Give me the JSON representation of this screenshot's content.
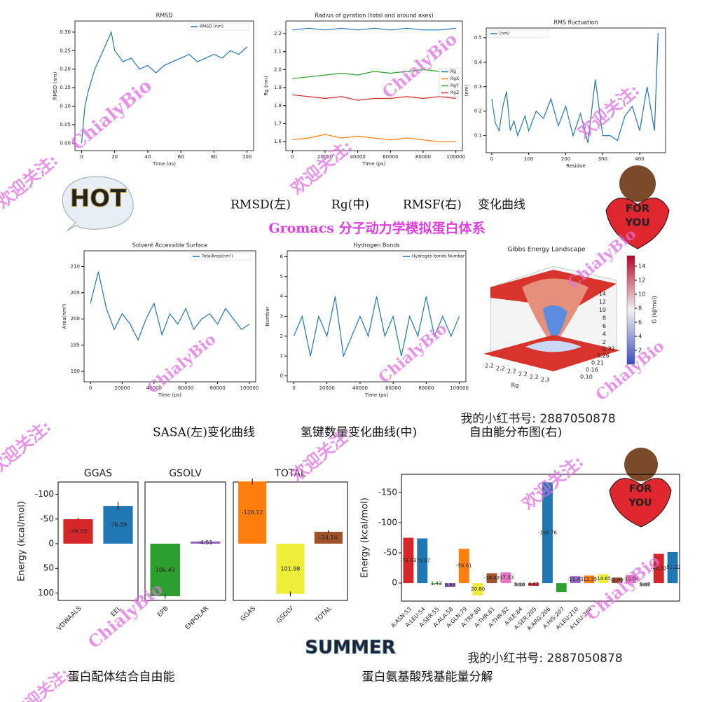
{
  "captions": {
    "rmsd": "RMSD(左)",
    "rg": "Rg(中)",
    "rmsf": "RMSF(右)",
    "curve": "变化曲线",
    "headline": "Gromacs 分子动力学模拟蛋白体系",
    "sasa": "SASA(左)变化曲线",
    "hbond": "氢键数量变化曲线(中)",
    "gibbs": "自由能分布图(右)",
    "binding": "蛋白配体结合自由能",
    "residue": "蛋白氨基酸残基能量分解"
  },
  "account": "我的小红书号: 2887050878",
  "stickers": [
    "HOT",
    "FOR",
    "YOU",
    "SUMMER"
  ],
  "watermarks": [
    "ChialyBio",
    "欢迎关注:"
  ],
  "chart_data": [
    {
      "type": "line",
      "title": "RMSD",
      "xlabel": "Time (ns)",
      "ylabel": "RMSD (nm)",
      "legend": "upper right",
      "x": [
        0,
        2,
        4,
        6,
        8,
        10,
        12,
        14,
        16,
        18,
        20,
        25,
        30,
        35,
        40,
        45,
        50,
        55,
        60,
        65,
        70,
        75,
        80,
        85,
        90,
        95,
        100
      ],
      "series": [
        {
          "name": "RMSD (nm)",
          "color": "#1f77b4",
          "values": [
            0,
            0.1,
            0.14,
            0.17,
            0.2,
            0.22,
            0.24,
            0.26,
            0.28,
            0.3,
            0.25,
            0.22,
            0.23,
            0.2,
            0.21,
            0.19,
            0.21,
            0.22,
            0.23,
            0.24,
            0.22,
            0.23,
            0.24,
            0.23,
            0.25,
            0.24,
            0.26
          ]
        }
      ],
      "xlim": [
        -4,
        104
      ],
      "xticks": [
        0,
        20,
        40,
        60,
        80,
        100
      ],
      "ylim": [
        -0.02,
        0.33
      ],
      "yticks": [
        {
          "value": 0,
          "label": "0.00"
        },
        0.05,
        {
          "value": 0.1,
          "label": "0.10"
        },
        0.15,
        {
          "value": 0.2,
          "label": "0.20"
        },
        0.25,
        {
          "value": 0.3,
          "label": "0.30"
        }
      ]
    },
    {
      "type": "line",
      "title": "Radius of gyration (total and around axes)",
      "xlabel": "Time (ps)",
      "ylabel": "Rg (nm)",
      "legend": "right",
      "x": [
        0,
        10000,
        20000,
        30000,
        40000,
        50000,
        60000,
        70000,
        80000,
        90000,
        100000
      ],
      "series": [
        {
          "name": "Rg",
          "color": "#1f77b4",
          "values": [
            2.22,
            2.23,
            2.22,
            2.23,
            2.22,
            2.23,
            2.22,
            2.23,
            2.22,
            2.22,
            2.23
          ]
        },
        {
          "name": "RgX",
          "color": "#ff7f0e",
          "values": [
            1.61,
            1.62,
            1.64,
            1.62,
            1.63,
            1.62,
            1.61,
            1.62,
            1.61,
            1.6,
            1.6
          ]
        },
        {
          "name": "RgY",
          "color": "#2ca02c",
          "values": [
            1.95,
            1.96,
            1.97,
            1.98,
            1.97,
            1.99,
            1.98,
            1.99,
            2.0,
            1.99,
            2.0
          ]
        },
        {
          "name": "RgZ",
          "color": "#d62728",
          "values": [
            1.86,
            1.85,
            1.84,
            1.85,
            1.83,
            1.84,
            1.84,
            1.85,
            1.84,
            1.85,
            1.84
          ]
        }
      ],
      "xlim": [
        -4000,
        104000
      ],
      "xticks": [
        0,
        20000,
        40000,
        60000,
        80000,
        100000
      ],
      "ylim": [
        1.55,
        2.27
      ],
      "yticks": [
        1.6,
        1.7,
        1.8,
        1.9,
        {
          "value": 2,
          "label": "2.0"
        },
        2.1,
        2.2
      ]
    },
    {
      "type": "line",
      "title": "RMS fluctuation",
      "xlabel": "Residue",
      "ylabel": "(nm)",
      "legend": "upper left",
      "x": [
        0,
        10,
        20,
        30,
        40,
        50,
        60,
        70,
        80,
        90,
        100,
        120,
        140,
        160,
        180,
        200,
        220,
        240,
        260,
        280,
        300,
        320,
        340,
        360,
        380,
        400,
        420,
        440,
        450
      ],
      "series": [
        {
          "name": "(nm)",
          "color": "#1f77b4",
          "values": [
            0.25,
            0.15,
            0.12,
            0.22,
            0.28,
            0.12,
            0.16,
            0.1,
            0.14,
            0.18,
            0.12,
            0.2,
            0.17,
            0.25,
            0.14,
            0.22,
            0.1,
            0.19,
            0.07,
            0.33,
            0.1,
            0.1,
            0.08,
            0.18,
            0.22,
            0.12,
            0.3,
            0.12,
            0.52
          ]
        }
      ],
      "xlim": [
        -15,
        470
      ],
      "xticks": [
        0,
        100,
        200,
        300,
        400
      ],
      "ylim": [
        0.03,
        0.54
      ],
      "yticks": [
        0.1,
        0.2,
        0.3,
        0.4,
        0.5
      ]
    },
    {
      "type": "line",
      "title": "Solvent Accessible Surface",
      "xlabel": "Time (ps)",
      "ylabel": "Area(nm²)",
      "legend": "upper right",
      "x": [
        0,
        5000,
        10000,
        15000,
        20000,
        25000,
        30000,
        35000,
        40000,
        45000,
        50000,
        55000,
        60000,
        65000,
        70000,
        75000,
        80000,
        85000,
        90000,
        95000,
        100000
      ],
      "series": [
        {
          "name": "TotalArea(nm²)",
          "color": "#1f77b4",
          "values": [
            203,
            209,
            202,
            198,
            201,
            199,
            196,
            200,
            203,
            197,
            201,
            199,
            202,
            198,
            200,
            201,
            199,
            202,
            200,
            198,
            199
          ]
        }
      ],
      "xlim": [
        -4000,
        104000
      ],
      "xticks": [
        0,
        20000,
        40000,
        60000,
        80000,
        100000
      ],
      "ylim": [
        188,
        213
      ],
      "yticks": [
        190,
        195,
        200,
        205,
        210
      ]
    },
    {
      "type": "line",
      "title": "Hydrogen Bonds",
      "xlabel": "Time (ps)",
      "ylabel": "Number",
      "legend": "upper right",
      "x": [
        0,
        5000,
        10000,
        15000,
        20000,
        25000,
        30000,
        35000,
        40000,
        45000,
        50000,
        55000,
        60000,
        65000,
        70000,
        75000,
        80000,
        85000,
        90000,
        95000,
        100000
      ],
      "series": [
        {
          "name": "Hydrogen bonds Number",
          "color": "#1f77b4",
          "values": [
            2,
            3,
            1,
            3,
            2,
            4,
            1,
            2,
            3,
            2,
            4,
            2,
            3,
            1,
            3,
            2,
            4,
            2,
            3,
            2,
            3
          ]
        }
      ],
      "xlim": [
        -4000,
        104000
      ],
      "xticks": [
        0,
        20000,
        40000,
        60000,
        80000,
        100000
      ],
      "ylim": [
        -0.3,
        6.3
      ],
      "yticks": [
        0,
        1,
        2,
        3,
        4,
        5,
        6
      ]
    },
    {
      "type": "surface",
      "title": "Gibbs Energy Landscape",
      "xlabel": "Rg",
      "clabel": "G (kJ/mol)",
      "clim": [
        0,
        15.5
      ],
      "cticks": [
        2,
        4,
        6,
        8,
        10,
        12,
        14
      ],
      "zticks": [
        2,
        4,
        6,
        8,
        10,
        12,
        14
      ],
      "xtick_labels": [
        "2.2",
        "2.2",
        "2.2",
        "2.2",
        "2.2",
        "2.3"
      ],
      "ytick_labels": [
        "0.32",
        "0.26",
        "0.21",
        "0.16",
        "0.10"
      ]
    },
    {
      "type": "bar",
      "title": "GGAS",
      "ylabel": "Energy (kcal/mol)",
      "categories": [
        "VDWAALS",
        "EEL"
      ],
      "values": [
        -49.53,
        -76.59
      ],
      "errors": [
        3,
        8
      ],
      "colors": [
        "#d62728",
        "#1f77b4"
      ],
      "ylim": [
        115,
        -125
      ],
      "yticks": [
        -100,
        -50,
        0,
        50,
        100
      ]
    },
    {
      "type": "bar",
      "title": "GSOLV",
      "categories": [
        "EPB",
        "ENPOLAR"
      ],
      "values": [
        106.49,
        -4.51
      ],
      "errors": [
        5,
        0.5
      ],
      "colors": [
        "#2ca02c",
        "#9467bd"
      ],
      "ylim": [
        115,
        -125
      ]
    },
    {
      "type": "bar",
      "title": "TOTAL",
      "categories": [
        "GGAS",
        "GSOLV",
        "TOTAL"
      ],
      "values": [
        -126.12,
        101.98,
        -24.14
      ],
      "errors": [
        6,
        5,
        3
      ],
      "colors": [
        "#ff7f0e",
        "#eded3a",
        "#a0522d"
      ],
      "ylim": [
        115,
        -125
      ]
    },
    {
      "type": "bar",
      "ylabel": "Energy (kcal/mol)",
      "categories": [
        "A:ASN:53",
        "A:LEU:54",
        "A:SER:55",
        "A:ALA:58",
        "A:GLN:79",
        "A:TRP:80",
        "A:THR:81",
        "A:THR:82",
        "A:ILE:84",
        "A:SER:205",
        "A:ARG:206",
        "A:HIS:207",
        "A:LEU:210",
        "A:LEU:264",
        null,
        null,
        null,
        null,
        null,
        null
      ],
      "values": [
        -74.93,
        -73.87,
        1.43,
        6.84,
        -56.61,
        20.8,
        -16.02,
        -17.53,
        5.1,
        4.62,
        -166.76,
        15,
        -11.43,
        -12.35,
        -14.65,
        -9,
        -13.06,
        5.07,
        -48.32,
        -51.22
      ],
      "value_labels": [
        "-74.93",
        "-73.87",
        "1.43",
        "6.84",
        "-56.61",
        "20.80",
        "-16.02",
        "-17.53",
        "5.10",
        "4.62",
        "-166.76",
        null,
        "-11.43",
        "-12.35",
        "-14.65",
        "-9.00",
        "-13.06",
        "5.07",
        "-48.32",
        "-51.22"
      ],
      "colors": [
        "#d62728",
        "#1f77b4",
        "#2ca02c",
        "#9467bd",
        "#ff7f0e",
        "#eded3a",
        "#a0522d",
        "#e377c2",
        "#999999",
        "#d62728",
        "#1f77b4",
        "#2ca02c",
        "#9467bd",
        "#ff7f0e",
        "#eded3a",
        "#a0522d",
        "#e377c2",
        "#999999",
        "#d62728",
        "#1f77b4"
      ],
      "ylim": [
        30,
        -180
      ],
      "yticks": [
        -150,
        -100,
        -50,
        0
      ]
    }
  ]
}
